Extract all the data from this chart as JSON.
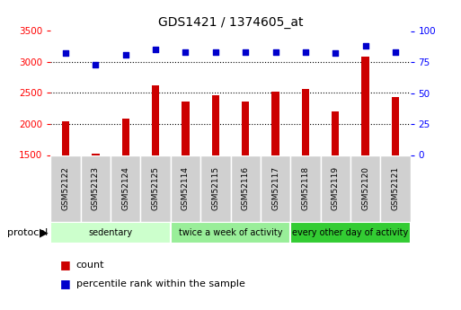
{
  "title": "GDS1421 / 1374605_at",
  "samples": [
    "GSM52122",
    "GSM52123",
    "GSM52124",
    "GSM52125",
    "GSM52114",
    "GSM52115",
    "GSM52116",
    "GSM52117",
    "GSM52118",
    "GSM52119",
    "GSM52120",
    "GSM52121"
  ],
  "counts": [
    2050,
    1520,
    2080,
    2630,
    2360,
    2460,
    2360,
    2520,
    2560,
    2200,
    3080,
    2430
  ],
  "percentile_ranks": [
    82,
    73,
    81,
    85,
    83,
    83,
    83,
    83,
    83,
    82,
    88,
    83
  ],
  "groups": [
    {
      "label": "sedentary",
      "start": 0,
      "end": 4,
      "color": "#ccffcc"
    },
    {
      "label": "twice a week of activity",
      "start": 4,
      "end": 8,
      "color": "#99ee99"
    },
    {
      "label": "every other day of activity",
      "start": 8,
      "end": 12,
      "color": "#33cc33"
    }
  ],
  "bar_color": "#cc0000",
  "dot_color": "#0000cc",
  "ylim_left": [
    1500,
    3500
  ],
  "ylim_right": [
    0,
    100
  ],
  "yticks_left": [
    1500,
    2000,
    2500,
    3000,
    3500
  ],
  "yticks_right": [
    0,
    25,
    50,
    75,
    100
  ],
  "grid_values": [
    2000,
    2500,
    3000
  ],
  "bar_width": 0.25,
  "background_color": "#ffffff",
  "plot_bg_color": "#ffffff",
  "tick_box_color": "#d0d0d0"
}
